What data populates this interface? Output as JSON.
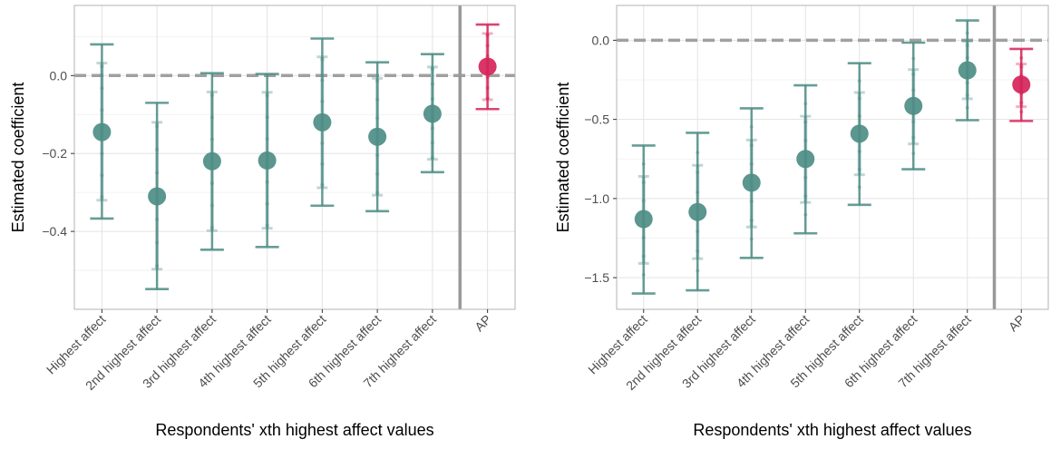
{
  "colors": {
    "series": "#4d8d85",
    "highlight": "#d6245a",
    "grid": "#e3e3e3",
    "panel_border": "#b3b3b3",
    "zero_line": "#a0a0a0",
    "separator": "#999999",
    "tick_text": "#4d4d4d"
  },
  "chart_data": [
    {
      "type": "scatter",
      "xlabel": "Respondents' xth highest affect values",
      "ylabel": "Estimated coefficient",
      "categories": [
        "Highest affect",
        "2nd highest affect",
        "3rd highest affect",
        "4th highest affect",
        "5th highest affect",
        "6th highest affect",
        "7th highest affect",
        "AP"
      ],
      "estimate": [
        -0.145,
        -0.31,
        -0.22,
        -0.218,
        -0.12,
        -0.157,
        -0.098,
        0.023
      ],
      "ci95_low": [
        -0.367,
        -0.548,
        -0.447,
        -0.44,
        -0.334,
        -0.348,
        -0.248,
        -0.086
      ],
      "ci95_high": [
        0.08,
        -0.07,
        0.006,
        0.004,
        0.095,
        0.034,
        0.055,
        0.131
      ],
      "ci90_low": [
        -0.32,
        -0.497,
        -0.398,
        -0.392,
        -0.288,
        -0.307,
        -0.215,
        -0.062
      ],
      "ci90_high": [
        0.032,
        -0.12,
        -0.042,
        -0.043,
        0.048,
        -0.007,
        0.022,
        0.108
      ],
      "highlight_index": 7,
      "yticks": [
        0.0,
        -0.2,
        -0.4
      ],
      "ytick_labels": [
        "0.0",
        "−0.2",
        "−0.4"
      ],
      "ylim": [
        -0.6,
        0.18
      ],
      "reference_line": 0
    },
    {
      "type": "scatter",
      "xlabel": "Respondents' xth highest affect values",
      "ylabel": "Estimated coefficient",
      "categories": [
        "Highest affect",
        "2nd highest affect",
        "3rd highest affect",
        "4th highest affect",
        "5th highest affect",
        "6th highest affect",
        "7th highest affect",
        "AP"
      ],
      "estimate": [
        -1.13,
        -1.085,
        -0.9,
        -0.75,
        -0.59,
        -0.415,
        -0.19,
        -0.28
      ],
      "ci95_low": [
        -1.6,
        -1.58,
        -1.375,
        -1.22,
        -1.04,
        -0.815,
        -0.505,
        -0.51
      ],
      "ci95_high": [
        -0.665,
        -0.585,
        -0.43,
        -0.285,
        -0.145,
        -0.015,
        0.125,
        -0.055
      ],
      "ci90_low": [
        -1.41,
        -1.38,
        -1.18,
        -1.025,
        -0.85,
        -0.655,
        -0.37,
        -0.42
      ],
      "ci90_high": [
        -0.86,
        -0.79,
        -0.63,
        -0.48,
        -0.33,
        -0.185,
        -0.005,
        -0.15
      ],
      "highlight_index": 7,
      "yticks": [
        0.0,
        -0.5,
        -1.0,
        -1.5
      ],
      "ytick_labels": [
        "0.0",
        "−0.5",
        "−1.0",
        "−1.5"
      ],
      "ylim": [
        -1.7,
        0.22
      ],
      "reference_line": 0
    }
  ]
}
